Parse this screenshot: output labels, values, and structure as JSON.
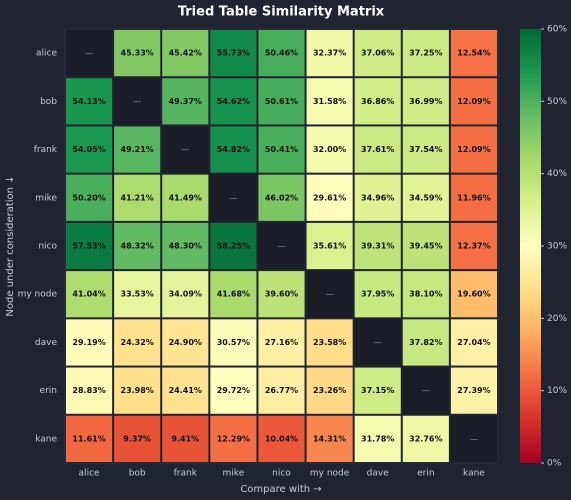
{
  "chart_data": {
    "type": "heatmap",
    "title": "Tried Table Similarity Matrix",
    "x_label": "Compare with →",
    "y_label": "Node under consideration ↓",
    "x_categories": [
      "alice",
      "bob",
      "frank",
      "mike",
      "nico",
      "my node",
      "dave",
      "erin",
      "kane"
    ],
    "y_categories": [
      "alice",
      "bob",
      "frank",
      "mike",
      "nico",
      "my node",
      "dave",
      "erin",
      "kane"
    ],
    "values": [
      [
        null,
        45.33,
        45.42,
        55.73,
        50.46,
        32.37,
        37.06,
        37.25,
        12.54
      ],
      [
        54.13,
        null,
        49.37,
        54.62,
        50.61,
        31.58,
        36.86,
        36.99,
        12.09
      ],
      [
        54.05,
        49.21,
        null,
        54.82,
        50.41,
        32.0,
        37.61,
        37.54,
        12.09
      ],
      [
        50.2,
        41.21,
        41.49,
        null,
        46.02,
        29.61,
        34.96,
        34.59,
        11.96
      ],
      [
        57.53,
        48.32,
        48.3,
        58.25,
        null,
        35.61,
        39.31,
        39.45,
        12.37
      ],
      [
        41.04,
        33.53,
        34.09,
        41.68,
        39.6,
        null,
        37.95,
        38.1,
        19.6
      ],
      [
        29.19,
        24.32,
        24.9,
        30.57,
        27.16,
        23.58,
        null,
        37.82,
        27.04
      ],
      [
        28.83,
        23.98,
        24.41,
        29.72,
        26.77,
        23.26,
        37.15,
        null,
        27.39
      ],
      [
        11.61,
        9.37,
        9.41,
        12.29,
        10.04,
        14.31,
        31.78,
        32.76,
        null
      ]
    ],
    "value_labels": [
      [
        "—",
        "45.33%",
        "45.42%",
        "55.73%",
        "50.46%",
        "32.37%",
        "37.06%",
        "37.25%",
        "12.54%"
      ],
      [
        "54.13%",
        "—",
        "49.37%",
        "54.62%",
        "50.61%",
        "31.58%",
        "36.86%",
        "36.99%",
        "12.09%"
      ],
      [
        "54.05%",
        "49.21%",
        "—",
        "54.82%",
        "50.41%",
        "32.00%",
        "37.61%",
        "37.54%",
        "12.09%"
      ],
      [
        "50.20%",
        "41.21%",
        "41.49%",
        "—",
        "46.02%",
        "29.61%",
        "34.96%",
        "34.59%",
        "11.96%"
      ],
      [
        "57.53%",
        "48.32%",
        "48.30%",
        "58.25%",
        "—",
        "35.61%",
        "39.31%",
        "39.45%",
        "12.37%"
      ],
      [
        "41.04%",
        "33.53%",
        "34.09%",
        "41.68%",
        "39.60%",
        "—",
        "37.95%",
        "38.10%",
        "19.60%"
      ],
      [
        "29.19%",
        "24.32%",
        "24.90%",
        "30.57%",
        "27.16%",
        "23.58%",
        "—",
        "37.82%",
        "27.04%"
      ],
      [
        "28.83%",
        "23.98%",
        "24.41%",
        "29.72%",
        "26.77%",
        "23.26%",
        "37.15%",
        "—",
        "27.39%"
      ],
      [
        "11.61%",
        "9.37%",
        "9.41%",
        "12.29%",
        "10.04%",
        "14.31%",
        "31.78%",
        "32.76%",
        "—"
      ]
    ],
    "zlim": [
      0,
      60
    ],
    "zticks": [
      {
        "value": 0,
        "label": "0%"
      },
      {
        "value": 10,
        "label": "10%"
      },
      {
        "value": 20,
        "label": "20%"
      },
      {
        "value": 30,
        "label": "30%"
      },
      {
        "value": 40,
        "label": "40%"
      },
      {
        "value": 50,
        "label": "50%"
      },
      {
        "value": 60,
        "label": "60%"
      }
    ],
    "colormap": [
      "#a50026",
      "#d73027",
      "#f46d43",
      "#fdae61",
      "#fee08b",
      "#ffffbf",
      "#d9ef8b",
      "#a6d96a",
      "#66bd63",
      "#1a9850",
      "#006837"
    ]
  }
}
